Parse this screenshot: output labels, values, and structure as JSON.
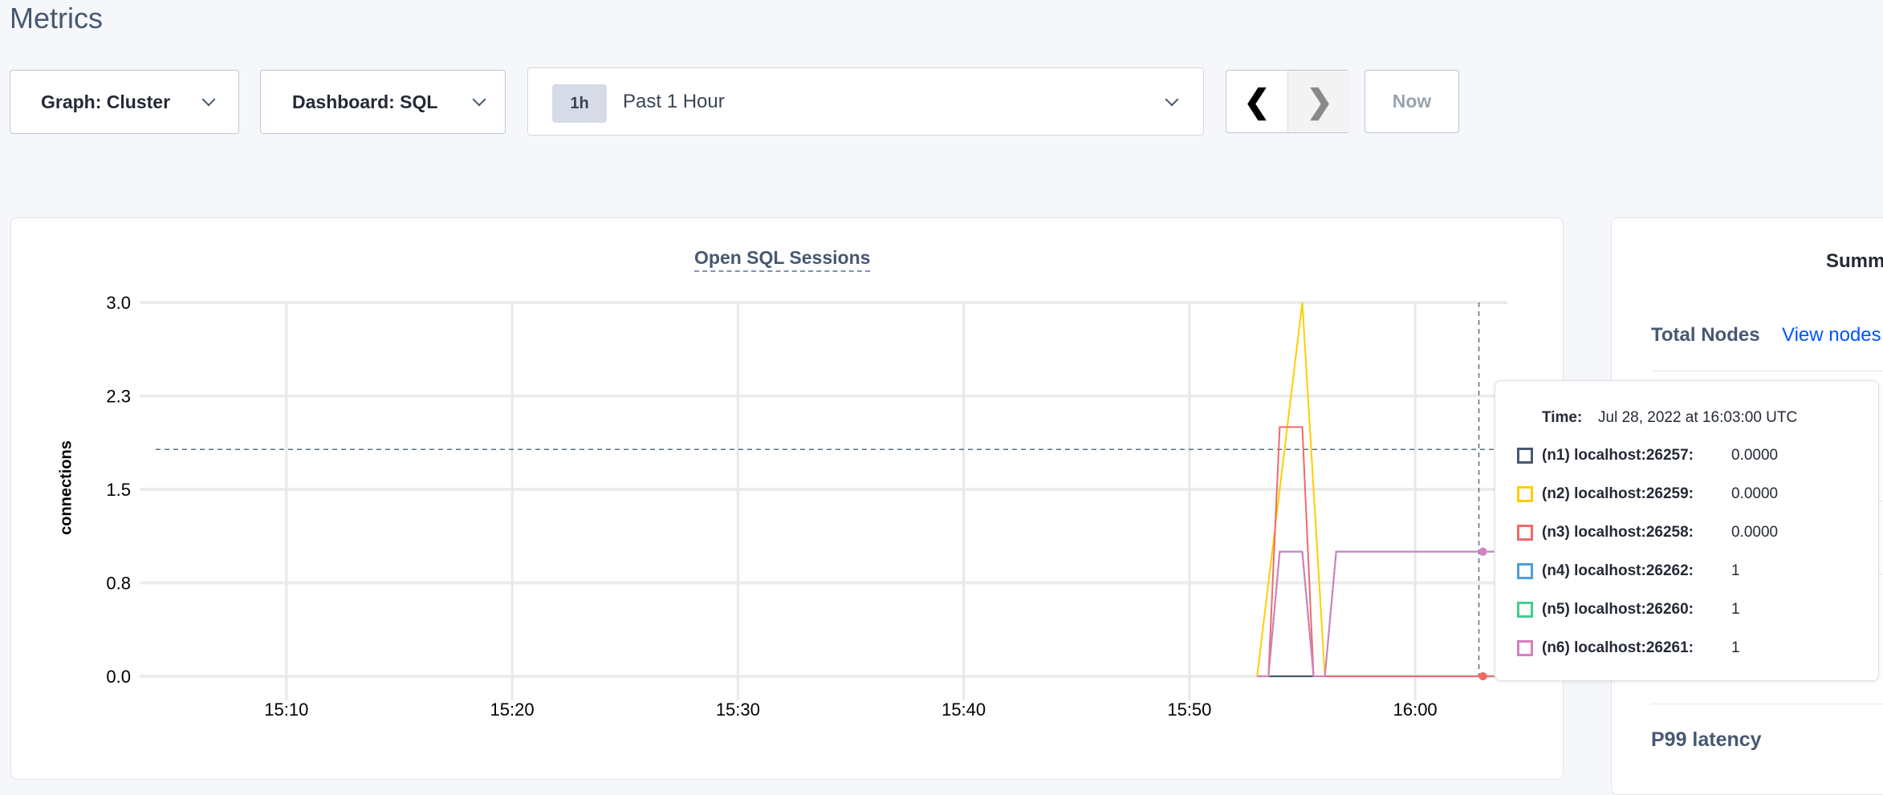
{
  "page": {
    "title": "Metrics"
  },
  "toolbar": {
    "graph_label": "Graph: Cluster",
    "dashboard_label": "Dashboard: SQL",
    "time_badge": "1h",
    "time_label": "Past 1 Hour",
    "prev_icon": "chevron-left-icon",
    "next_icon": "chevron-right-icon",
    "now_label": "Now"
  },
  "chart_data": {
    "type": "line",
    "title": "Open SQL Sessions",
    "ylabel": "connections",
    "xlabel": "",
    "ylim": [
      0,
      3
    ],
    "xlim": [
      "15:03:30",
      "16:04:05"
    ],
    "yticks": [
      0,
      0.75,
      1.5,
      2.25,
      3
    ],
    "ytick_labels": [
      "0.0",
      "0.8",
      "1.5",
      "2.3",
      "3.0"
    ],
    "xtick_labels": [
      "15:10",
      "15:20",
      "15:30",
      "15:40",
      "15:50",
      "16:00"
    ],
    "grid": true,
    "hover_time": "16:03:00",
    "hover_y": 1.82,
    "series": [
      {
        "name": "(n1) localhost:26257",
        "color": "#475872",
        "x": [
          "15:53:00",
          "15:53:30",
          "15:54:00",
          "15:55:00",
          "15:55:30",
          "16:03:30"
        ],
        "y": [
          0,
          0,
          0,
          0,
          0,
          0
        ]
      },
      {
        "name": "(n4) localhost:26262",
        "color": "#4e9fd8",
        "x": [
          "15:53:00",
          "15:53:30",
          "15:54:00",
          "15:55:00",
          "15:55:30",
          "15:56:00",
          "15:56:30",
          "16:03:30"
        ],
        "y": [
          0,
          0,
          1,
          1,
          0,
          0,
          1,
          1
        ]
      },
      {
        "name": "(n5) localhost:26260",
        "color": "#3fd18f",
        "x": [
          "15:53:00",
          "15:53:30",
          "15:54:00",
          "15:55:00",
          "15:55:30",
          "15:56:00",
          "15:56:30",
          "16:03:30"
        ],
        "y": [
          0,
          0,
          1,
          1,
          0,
          0,
          1,
          1
        ]
      },
      {
        "name": "(n2) localhost:26259",
        "color": "#ffcd02",
        "x": [
          "15:53:00",
          "15:55:00",
          "15:56:00",
          "16:03:30"
        ],
        "y": [
          0,
          3,
          0,
          0
        ]
      },
      {
        "name": "(n3) localhost:26258",
        "color": "#f16969",
        "x": [
          "15:53:00",
          "15:53:30",
          "15:54:00",
          "15:55:00",
          "15:55:30",
          "16:03:30"
        ],
        "y": [
          0,
          0,
          2,
          2,
          0,
          0
        ]
      },
      {
        "name": "(n6) localhost:26261",
        "color": "#d77fbf",
        "x": [
          "15:53:00",
          "15:53:30",
          "15:54:00",
          "15:55:00",
          "15:55:30",
          "15:56:00",
          "15:56:30",
          "16:03:30"
        ],
        "y": [
          0,
          0,
          1,
          1,
          0,
          0,
          1,
          1
        ]
      }
    ]
  },
  "tooltip": {
    "time_label": "Time:",
    "time_value": "Jul 28, 2022 at 16:03:00 UTC",
    "rows": [
      {
        "label": "(n1) localhost:26257:",
        "value": "0.0000",
        "color": "#475872"
      },
      {
        "label": "(n2) localhost:26259:",
        "value": "0.0000",
        "color": "#ffcd02"
      },
      {
        "label": "(n3) localhost:26258:",
        "value": "0.0000",
        "color": "#f16969"
      },
      {
        "label": "(n4) localhost:26262:",
        "value": "1",
        "color": "#4e9fd8"
      },
      {
        "label": "(n5) localhost:26260:",
        "value": "1",
        "color": "#3fd18f"
      },
      {
        "label": "(n6) localhost:26261:",
        "value": "1",
        "color": "#d77fbf"
      }
    ]
  },
  "summary": {
    "heading": "Summ",
    "total_nodes_label": "Total Nodes",
    "view_nodes_link": "View nodes",
    "p99_label": "P99 latency"
  }
}
